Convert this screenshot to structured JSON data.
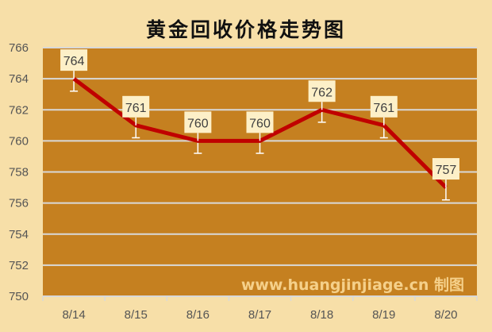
{
  "chart_data": {
    "type": "line",
    "title": "黄金回收价格走势图",
    "categories": [
      "8/14",
      "8/15",
      "8/16",
      "8/17",
      "8/18",
      "8/19",
      "8/20"
    ],
    "values": [
      764,
      761,
      760,
      760,
      762,
      761,
      757
    ],
    "data_labels": [
      "764",
      "761",
      "760",
      "760",
      "762",
      "761",
      "757"
    ],
    "error_bar": "minus",
    "xlabel": "",
    "ylabel": "",
    "ylim": [
      750,
      766
    ],
    "yticks": [
      "750",
      "752",
      "754",
      "756",
      "758",
      "760",
      "762",
      "764",
      "766"
    ],
    "grid": true,
    "legend": "none",
    "watermark": "www.huangjinjiage.cn 制图",
    "colors": {
      "background": "#f7dfa8",
      "plot_area": "#c58020",
      "line": "#c00000",
      "gridline": "#d9d9d9",
      "error_bar": "#ffffff",
      "label_box": "#fdf0c8"
    }
  }
}
